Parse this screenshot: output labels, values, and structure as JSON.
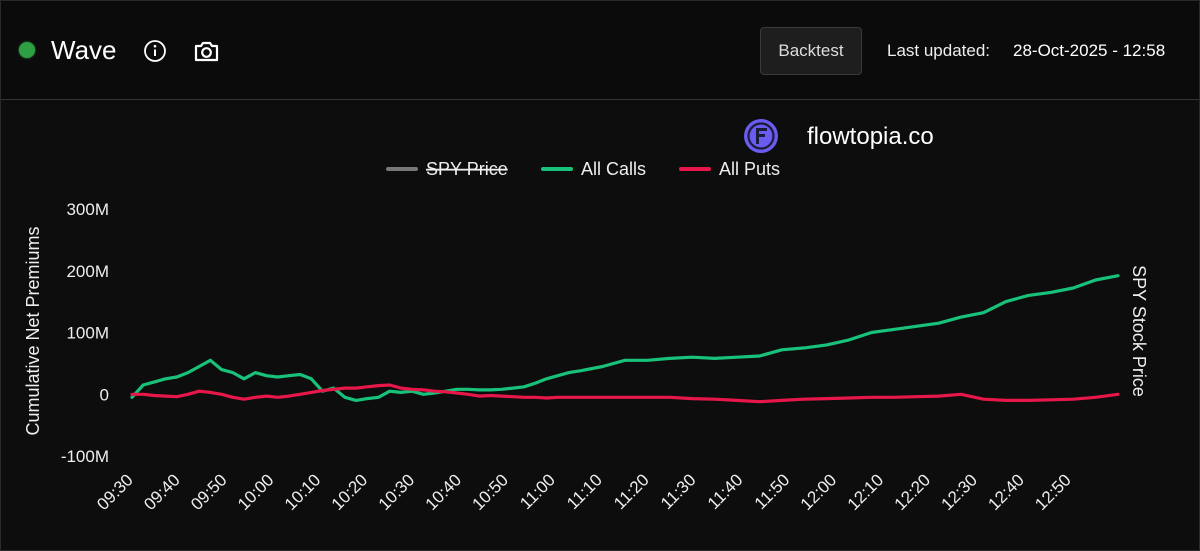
{
  "header": {
    "title": "Wave",
    "status_color": "#2ea043",
    "info_icon": "info-icon",
    "camera_icon": "camera-icon",
    "backtest_label": "Backtest",
    "last_updated_label": "Last updated:",
    "last_updated_value": "28-Oct-2025 - 12:58"
  },
  "brand": {
    "icon": "flowtopia-logo-icon",
    "text": "flowtopia.co"
  },
  "chart_data": {
    "type": "line",
    "ylabel": "Cumulative Net Premiums",
    "y2label": "SPY Stock Price",
    "y_ticks": [
      "300M",
      "200M",
      "100M",
      "0",
      "-100M"
    ],
    "ylim": [
      -100,
      300
    ],
    "y_unit": "M",
    "x_ticks": [
      "09:30",
      "09:40",
      "09:50",
      "10:00",
      "10:10",
      "10:20",
      "10:30",
      "10:40",
      "10:50",
      "11:00",
      "11:10",
      "11:20",
      "11:30",
      "11:40",
      "11:50",
      "12:00",
      "12:10",
      "12:20",
      "12:30",
      "12:40",
      "12:50"
    ],
    "x_range_minutes": [
      0,
      88
    ],
    "legend": [
      {
        "name": "SPY Price",
        "color": "#777777",
        "hidden": true
      },
      {
        "name": "All Calls",
        "color": "#18c27a",
        "hidden": false
      },
      {
        "name": "All Puts",
        "color": "#e8174a",
        "hidden": false
      }
    ],
    "series": [
      {
        "name": "All Calls",
        "color": "#18c27a",
        "x": [
          0,
          0.5,
          1,
          2,
          3,
          4,
          5,
          6,
          7,
          8,
          9,
          10,
          11,
          12,
          13,
          14,
          15,
          16,
          17,
          18,
          19,
          20,
          21,
          22,
          23,
          24,
          25,
          26,
          27,
          28,
          29,
          30,
          31,
          32,
          33,
          34,
          35,
          36,
          37,
          38,
          39,
          40,
          42,
          44,
          46,
          48,
          50,
          52,
          54,
          56,
          58,
          60,
          62,
          64,
          66,
          68,
          70,
          72,
          74,
          76,
          78,
          79,
          80,
          82,
          84,
          86,
          88
        ],
        "values": [
          -5,
          5,
          15,
          20,
          25,
          28,
          35,
          45,
          55,
          40,
          35,
          25,
          35,
          30,
          28,
          30,
          32,
          25,
          5,
          10,
          -5,
          -10,
          -7,
          -5,
          5,
          3,
          5,
          0,
          2,
          5,
          8,
          8,
          7,
          7,
          8,
          10,
          12,
          18,
          25,
          30,
          35,
          38,
          45,
          55,
          55,
          58,
          60,
          58,
          60,
          62,
          72,
          75,
          80,
          88,
          100,
          105,
          110,
          115,
          125,
          132,
          150,
          155,
          160,
          165,
          172,
          185,
          192
        ]
      },
      {
        "name": "All Puts",
        "color": "#e8174a",
        "x": [
          0,
          1,
          2,
          3,
          4,
          5,
          6,
          7,
          8,
          9,
          10,
          11,
          12,
          13,
          14,
          15,
          16,
          17,
          18,
          19,
          20,
          21,
          22,
          23,
          24,
          25,
          26,
          27,
          28,
          29,
          30,
          31,
          32,
          33,
          34,
          35,
          36,
          37,
          38,
          40,
          42,
          44,
          46,
          48,
          50,
          52,
          54,
          56,
          58,
          60,
          62,
          64,
          66,
          68,
          70,
          72,
          74,
          76,
          78,
          80,
          82,
          84,
          86,
          88
        ],
        "values": [
          0,
          0,
          -2,
          -3,
          -4,
          0,
          5,
          3,
          0,
          -5,
          -8,
          -5,
          -3,
          -5,
          -3,
          0,
          3,
          6,
          8,
          10,
          10,
          12,
          14,
          15,
          10,
          8,
          7,
          5,
          4,
          2,
          0,
          -3,
          -2,
          -3,
          -4,
          -5,
          -5,
          -6,
          -5,
          -5,
          -5,
          -5,
          -5,
          -5,
          -7,
          -8,
          -10,
          -12,
          -10,
          -8,
          -7,
          -6,
          -5,
          -5,
          -4,
          -3,
          0,
          -8,
          -10,
          -10,
          -9,
          -8,
          -5,
          0
        ]
      }
    ]
  }
}
